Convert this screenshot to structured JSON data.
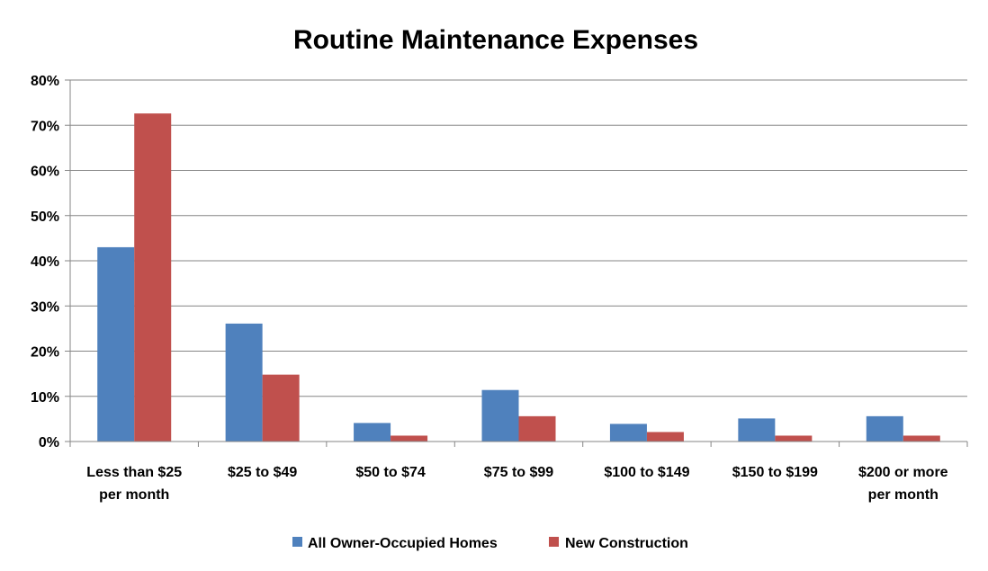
{
  "chart_data": {
    "type": "bar",
    "title": "Routine Maintenance Expenses",
    "xlabel": "",
    "ylabel": "",
    "categories": [
      [
        "Less than $25",
        "per month"
      ],
      [
        "$25 to $49"
      ],
      [
        "$50 to $74"
      ],
      [
        "$75 to $99"
      ],
      [
        "$100 to $149"
      ],
      [
        "$150 to $199"
      ],
      [
        "$200 or more",
        "per month"
      ]
    ],
    "series": [
      {
        "name": "All Owner-Occupied Homes",
        "color": "#4F81BD",
        "values": [
          43,
          26.1,
          4.1,
          11.4,
          3.9,
          5.1,
          5.6
        ]
      },
      {
        "name": "New Construction",
        "color": "#C0504D",
        "values": [
          72.6,
          14.8,
          1.3,
          5.6,
          2.1,
          1.3,
          1.3
        ]
      }
    ],
    "ylim": [
      0,
      80
    ],
    "yticks": [
      "0%",
      "10%",
      "20%",
      "30%",
      "40%",
      "50%",
      "60%",
      "70%",
      "80%"
    ],
    "grid": true,
    "legend_position": "bottom"
  }
}
